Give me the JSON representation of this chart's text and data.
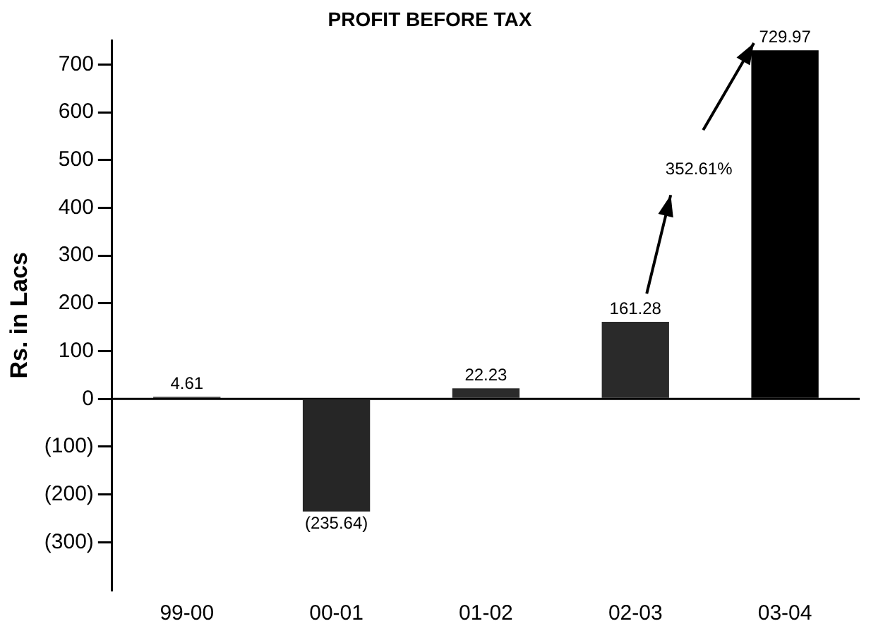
{
  "chart_data": {
    "type": "bar",
    "title": "PROFIT BEFORE TAX",
    "ylabel": "Rs. in Lacs",
    "categories": [
      "99-00",
      "00-01",
      "01-02",
      "02-03",
      "03-04"
    ],
    "values": [
      4.61,
      -235.64,
      22.23,
      161.28,
      729.97
    ],
    "value_labels": [
      "4.61",
      "(235.64)",
      "22.23",
      "161.28",
      "729.97"
    ],
    "colors": [
      "#2b2b2b",
      "#262626",
      "#2b2b2b",
      "#2a2a2a",
      "#000000"
    ],
    "ylim": [
      -400,
      750
    ],
    "yticks": [
      {
        "value": -300,
        "label": "(300)"
      },
      {
        "value": -200,
        "label": "(200)"
      },
      {
        "value": -100,
        "label": "(100)"
      },
      0,
      100,
      200,
      300,
      400,
      500,
      600,
      700
    ],
    "annotations": [
      "352.61%"
    ],
    "ref_lines": [
      {
        "axis": "y",
        "value": 0,
        "color": "#000000"
      }
    ],
    "grid": false,
    "legend": false
  }
}
